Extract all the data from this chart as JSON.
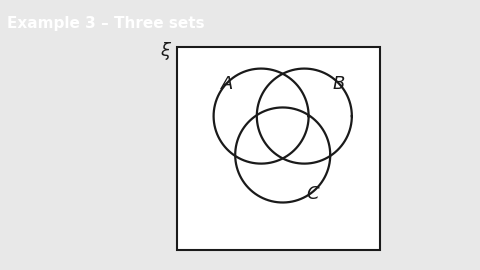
{
  "title": "Example 3 – Three sets",
  "title_bg": "#5b2d8e",
  "title_fg": "#ffffff",
  "title_fontsize": 11,
  "bg_color": "#e8e8e8",
  "circle_color": "#1a1a1a",
  "circle_lw": 1.6,
  "label_A": "$A$",
  "label_B": "$B$",
  "label_C": "$C$",
  "label_xi": "$\\xi$",
  "fig_w": 4.8,
  "fig_h": 2.7,
  "fig_dpi": 100
}
